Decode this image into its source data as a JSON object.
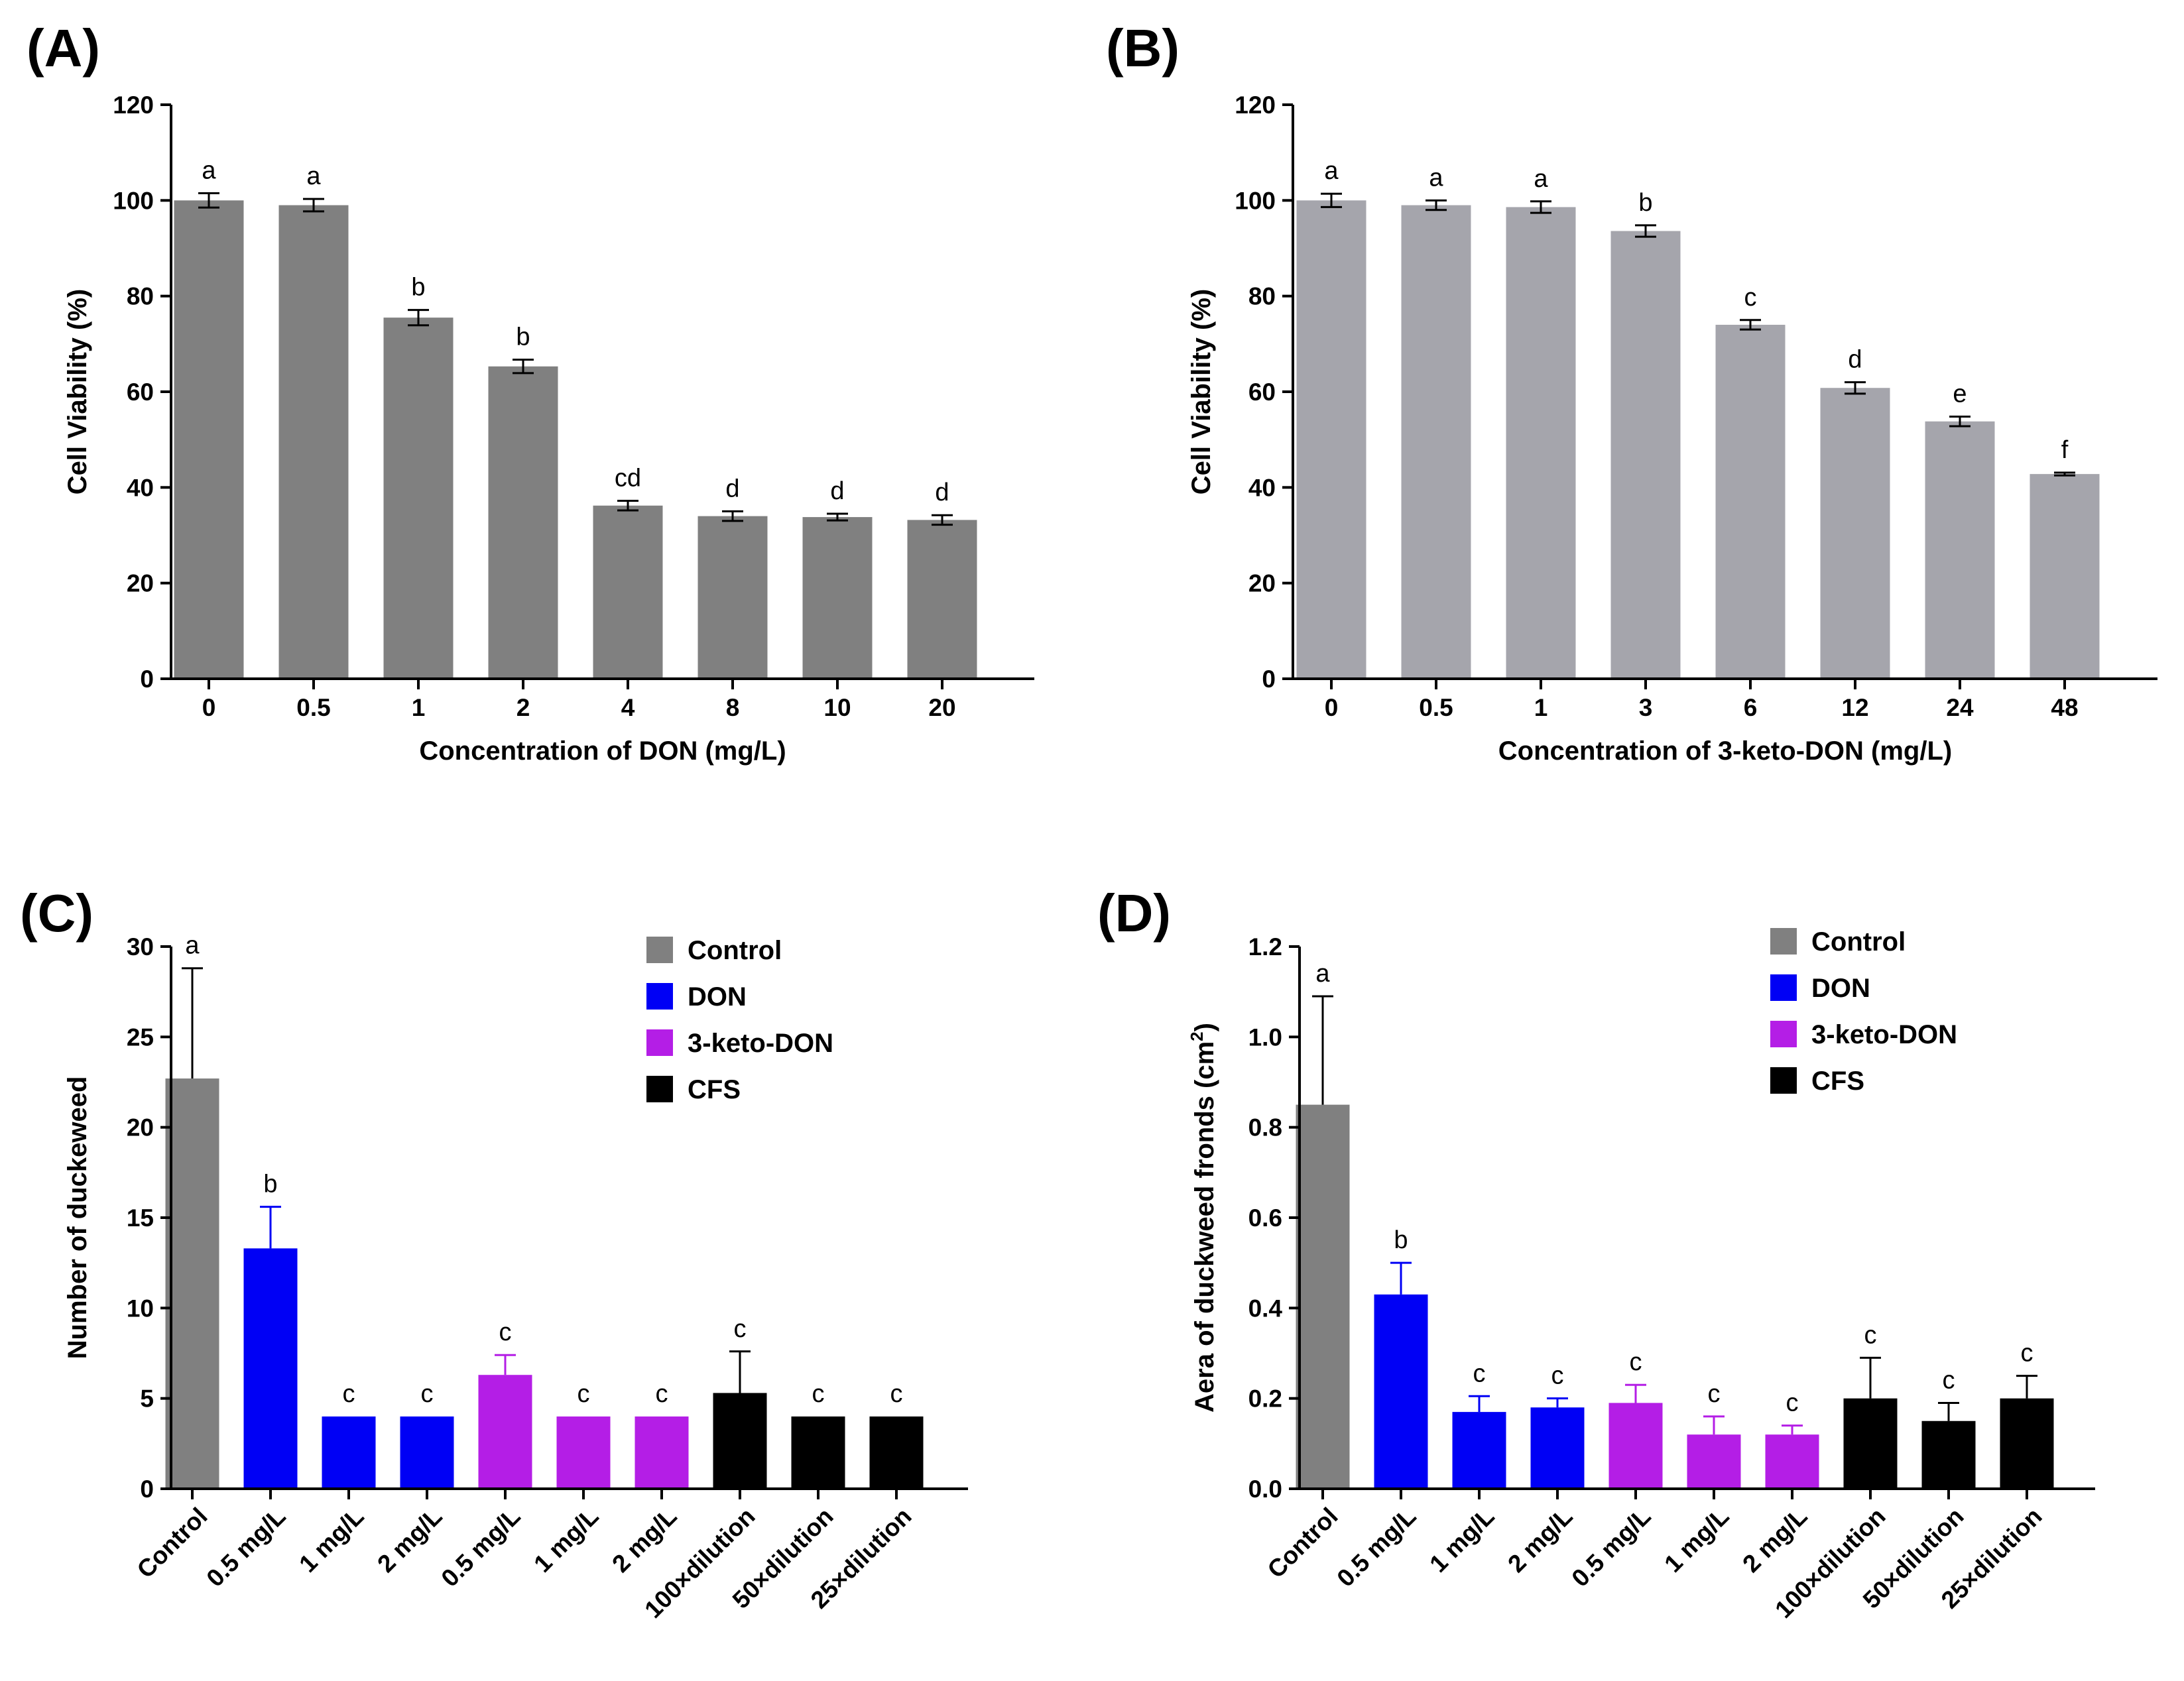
{
  "chart_data": [
    {
      "id": "A",
      "type": "bar",
      "panel_label": "(A)",
      "title": "",
      "xlabel": "Concentration of DON (mg/L)",
      "ylabel": "Cell Viability (%)",
      "ylim": [
        0,
        120
      ],
      "yticks": [
        "0",
        "20",
        "40",
        "60",
        "80",
        "100",
        "120"
      ],
      "categories": [
        "0",
        "0.5",
        "1",
        "2",
        "4",
        "8",
        "10",
        "20"
      ],
      "values": [
        100,
        99,
        75.5,
        65.3,
        36.2,
        34,
        33.8,
        33.2
      ],
      "errors": [
        1.5,
        1.3,
        1.6,
        1.4,
        1.0,
        1.0,
        0.7,
        1.0
      ],
      "significance": [
        "a",
        "a",
        "b",
        "b",
        "cd",
        "d",
        "d",
        "d"
      ],
      "colors": [
        "#808080"
      ],
      "grid": false
    },
    {
      "id": "B",
      "type": "bar",
      "panel_label": "(B)",
      "title": "",
      "xlabel": "Concentration of 3-keto-DON (mg/L)",
      "ylabel": "Cell Viability (%)",
      "ylim": [
        0,
        120
      ],
      "yticks": [
        "0",
        "20",
        "40",
        "60",
        "80",
        "100",
        "120"
      ],
      "categories": [
        "0",
        "0.5",
        "1",
        "3",
        "6",
        "12",
        "24",
        "48"
      ],
      "values": [
        100,
        99,
        98.6,
        93.6,
        74,
        60.8,
        53.8,
        42.8
      ],
      "errors": [
        1.4,
        1.0,
        1.2,
        1.2,
        1.0,
        1.2,
        1.0,
        0.3
      ],
      "significance": [
        "a",
        "a",
        "a",
        "b",
        "c",
        "d",
        "e",
        "f"
      ],
      "colors": [
        "#a5a5ac"
      ],
      "grid": false
    },
    {
      "id": "C",
      "type": "bar",
      "panel_label": "(C)",
      "title": "",
      "xlabel": "",
      "ylabel": "Number of duckeweed",
      "ylim": [
        0,
        30
      ],
      "yticks": [
        "0",
        "5",
        "10",
        "15",
        "20",
        "25",
        "30"
      ],
      "categories": [
        "Control",
        "0.5 mg/L",
        "1 mg/L",
        "2 mg/L",
        "0.5 mg/L",
        "1 mg/L",
        "2 mg/L",
        "100×dilution",
        "50×dilution",
        "25×dilution"
      ],
      "values": [
        22.7,
        13.3,
        4,
        4,
        6.3,
        4,
        4,
        5.3,
        4,
        4
      ],
      "errors": [
        6.1,
        2.3,
        0,
        0,
        1.1,
        0,
        0,
        2.3,
        0,
        0
      ],
      "significance": [
        "a",
        "b",
        "c",
        "c",
        "c",
        "c",
        "c",
        "c",
        "c",
        "c"
      ],
      "groups": [
        "Control",
        "DON",
        "DON",
        "DON",
        "3-keto-DON",
        "3-keto-DON",
        "3-keto-DON",
        "CFS",
        "CFS",
        "CFS"
      ],
      "legend": [
        {
          "name": "Control",
          "color": "#808080"
        },
        {
          "name": "DON",
          "color": "#0000f5"
        },
        {
          "name": "3-keto-DON",
          "color": "#b41ee6"
        },
        {
          "name": "CFS",
          "color": "#000000"
        }
      ],
      "legend_position": "top-right",
      "grid": false
    },
    {
      "id": "D",
      "type": "bar",
      "panel_label": "(D)",
      "title": "",
      "xlabel": "",
      "ylabel_main": "Aera of duckweed fronds (cm",
      "ylabel_sup": "2",
      "ylabel_end": ")",
      "ylim": [
        0,
        1.2
      ],
      "yticks": [
        "0.0",
        "0.2",
        "0.4",
        "0.6",
        "0.8",
        "1.0",
        "1.2"
      ],
      "categories": [
        "Control",
        "0.5 mg/L",
        "1 mg/L",
        "2 mg/L",
        "0.5 mg/L",
        "1 mg/L",
        "2 mg/L",
        "100×dilution",
        "50×dilution",
        "25×dilution"
      ],
      "values": [
        0.85,
        0.43,
        0.17,
        0.18,
        0.19,
        0.12,
        0.12,
        0.2,
        0.15,
        0.2
      ],
      "errors": [
        0.24,
        0.07,
        0.035,
        0.02,
        0.04,
        0.04,
        0.02,
        0.09,
        0.04,
        0.05
      ],
      "significance": [
        "a",
        "b",
        "c",
        "c",
        "c",
        "c",
        "c",
        "c",
        "c",
        "c"
      ],
      "groups": [
        "Control",
        "DON",
        "DON",
        "DON",
        "3-keto-DON",
        "3-keto-DON",
        "3-keto-DON",
        "CFS",
        "CFS",
        "CFS"
      ],
      "legend": [
        {
          "name": "Control",
          "color": "#808080"
        },
        {
          "name": "DON",
          "color": "#0000f5"
        },
        {
          "name": "3-keto-DON",
          "color": "#b41ee6"
        },
        {
          "name": "CFS",
          "color": "#000000"
        }
      ],
      "legend_position": "top-right",
      "grid": false
    }
  ]
}
